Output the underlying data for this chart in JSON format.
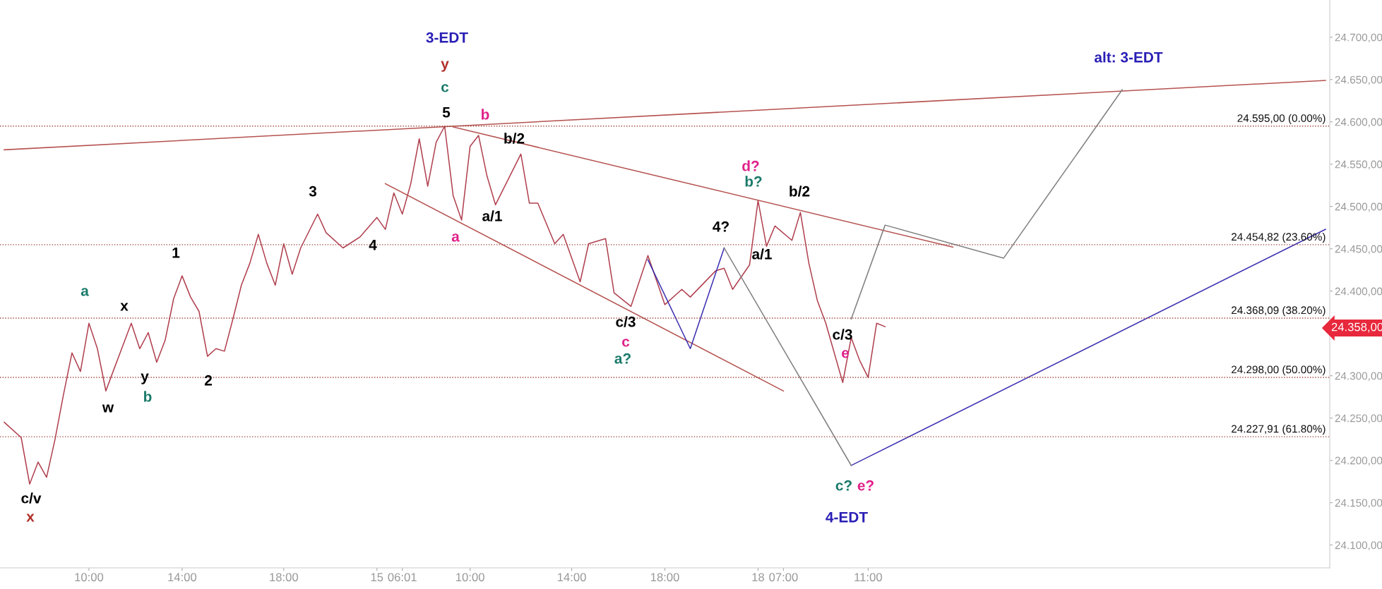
{
  "chart_data": {
    "type": "line",
    "ylim": [
      24073,
      24744
    ],
    "categories": [
      null,
      null,
      null,
      null,
      null,
      null,
      null,
      null,
      null,
      null,
      "10:00",
      null,
      null,
      null,
      null,
      null,
      null,
      null,
      null,
      null,
      null,
      "14:00",
      null,
      null,
      null,
      null,
      null,
      null,
      null,
      null,
      null,
      null,
      null,
      "18:00",
      null,
      null,
      null,
      null,
      null,
      null,
      null,
      null,
      null,
      null,
      "15",
      null,
      null,
      "06:01",
      null,
      null,
      null,
      null,
      null,
      null,
      null,
      "10:00",
      null,
      null,
      null,
      null,
      null,
      null,
      null,
      null,
      null,
      null,
      null,
      "14:00",
      null,
      null,
      null,
      null,
      null,
      null,
      null,
      null,
      null,
      null,
      "18:00",
      null,
      null,
      null,
      null,
      null,
      null,
      null,
      null,
      null,
      null,
      "18",
      null,
      null,
      "07:00",
      null,
      null,
      null,
      null,
      null,
      null,
      null,
      null,
      null,
      "11:00",
      null,
      null,
      null,
      null,
      null,
      null,
      null,
      null,
      null,
      null,
      null,
      null,
      null,
      null,
      null,
      null,
      null,
      null,
      null,
      null,
      null,
      null,
      null,
      null,
      null,
      null,
      null,
      null,
      null,
      null,
      null,
      null,
      null,
      null,
      null,
      null,
      null,
      null,
      null,
      null,
      null,
      null,
      null,
      null,
      null,
      null,
      null,
      null,
      null,
      null,
      null,
      null,
      null,
      null
    ],
    "yticks": [
      {
        "value": 24100,
        "label": "24.100,00"
      },
      {
        "value": 24150,
        "label": "24.150,00"
      },
      {
        "value": 24200,
        "label": "24.200,00"
      },
      {
        "value": 24250,
        "label": "24.250,00"
      },
      {
        "value": 24300,
        "label": "24.300,00"
      },
      {
        "value": 24350,
        "label": null
      },
      {
        "value": 24400,
        "label": "24.400,00"
      },
      {
        "value": 24450,
        "label": "24.450,00"
      },
      {
        "value": 24500,
        "label": "24.500,00"
      },
      {
        "value": 24550,
        "label": "24.550,00"
      },
      {
        "value": 24600,
        "label": "24.600,00"
      },
      {
        "value": 24650,
        "label": "24.650,00"
      },
      {
        "value": 24700,
        "label": "24.700,00"
      }
    ],
    "grid": false,
    "legend": false,
    "marker": "none",
    "line_style": "solid",
    "series": [
      {
        "color": "#b0404f",
        "values": [
          24245,
          null,
          24227,
          24172,
          24198,
          24180,
          24225,
          24278,
          24327,
          24305,
          24362,
          24332,
          24282,
          24309,
          null,
          24362,
          24332,
          24351,
          24316,
          24342,
          24391,
          24418,
          24393,
          24376,
          24323,
          24332,
          24329,
          24367,
          24407,
          24433,
          24467,
          24433,
          24407,
          24456,
          24420,
          24451,
          null,
          24491,
          24469,
          null,
          24451,
          null,
          24464,
          null,
          24487,
          24473,
          24516,
          24491,
          24527,
          24580,
          24524,
          24576,
          24595,
          24513,
          24484,
          24571,
          24584,
          24536,
          24502,
          null,
          null,
          24562,
          24504,
          24504,
          null,
          24456,
          24467,
          null,
          24411,
          24456,
          null,
          24462,
          24398,
          null,
          24382,
          null,
          24442,
          null,
          24384,
          null,
          24402,
          24393,
          null,
          null,
          24424,
          24427,
          24402,
          null,
          24431,
          24507,
          24453,
          24477,
          null,
          24460,
          24493,
          24433,
          24389,
          24362,
          24327,
          24292,
          24345,
          24318,
          24298,
          24362,
          24358,
          null,
          null,
          null,
          null,
          null,
          null,
          null,
          null,
          null,
          null,
          null,
          null,
          null,
          null,
          null,
          null,
          null,
          null,
          null,
          null,
          null,
          null,
          null,
          null,
          null,
          null,
          null,
          null,
          null,
          null,
          null,
          null,
          null,
          null,
          null,
          null,
          null,
          null,
          null,
          null,
          null,
          null,
          null,
          null,
          null,
          null,
          null,
          null,
          null,
          null,
          null,
          null
        ]
      },
      {
        "color": "#b5524f",
        "values": [
          24567,
          null,
          null,
          null,
          null,
          null,
          null,
          null,
          null,
          null,
          null,
          null,
          null,
          null,
          null,
          null,
          null,
          null,
          null,
          null,
          null,
          null,
          null,
          null,
          null,
          null,
          null,
          null,
          null,
          null,
          null,
          null,
          null,
          null,
          null,
          null,
          null,
          null,
          null,
          null,
          null,
          null,
          null,
          null,
          null,
          null,
          null,
          null,
          null,
          null,
          null,
          null,
          null,
          null,
          null,
          null,
          null,
          null,
          null,
          null,
          null,
          null,
          null,
          null,
          null,
          null,
          null,
          null,
          null,
          null,
          null,
          null,
          null,
          null,
          null,
          null,
          null,
          null,
          null,
          null,
          null,
          null,
          null,
          null,
          null,
          null,
          null,
          null,
          null,
          null,
          null,
          null,
          null,
          null,
          null,
          null,
          null,
          null,
          null,
          null,
          null,
          null,
          null,
          null,
          null,
          null,
          null,
          null,
          null,
          null,
          null,
          null,
          null,
          null,
          null,
          null,
          null,
          null,
          null,
          null,
          null,
          null,
          null,
          null,
          null,
          null,
          null,
          null,
          null,
          null,
          null,
          null,
          null,
          null,
          null,
          null,
          null,
          null,
          null,
          null,
          null,
          null,
          null,
          null,
          null,
          null,
          null,
          null,
          null,
          null,
          null,
          null,
          null,
          null,
          null,
          null,
          24649
        ]
      },
      {
        "color": "#b5524f",
        "values": [
          null,
          null,
          null,
          null,
          null,
          null,
          null,
          null,
          null,
          null,
          null,
          null,
          null,
          null,
          null,
          null,
          null,
          null,
          null,
          null,
          null,
          null,
          null,
          null,
          null,
          null,
          null,
          null,
          null,
          null,
          null,
          null,
          null,
          null,
          null,
          null,
          null,
          null,
          null,
          null,
          null,
          null,
          null,
          null,
          null,
          null,
          null,
          null,
          null,
          null,
          null,
          null,
          null,
          24594,
          null,
          null,
          null,
          null,
          null,
          null,
          null,
          null,
          null,
          null,
          null,
          null,
          null,
          null,
          null,
          null,
          null,
          null,
          null,
          null,
          null,
          null,
          null,
          null,
          null,
          null,
          null,
          null,
          null,
          null,
          null,
          null,
          null,
          null,
          null,
          null,
          null,
          null,
          null,
          null,
          null,
          null,
          null,
          null,
          null,
          null,
          null,
          null,
          null,
          null,
          null,
          null,
          null,
          null,
          null,
          null,
          null,
          null,
          24452,
          null,
          null,
          null,
          null,
          null,
          null,
          null,
          null,
          null,
          null,
          null,
          null,
          null,
          null,
          null,
          null,
          null,
          null,
          null,
          null,
          null,
          null,
          null,
          null,
          null,
          null,
          null,
          null,
          null,
          null,
          null,
          null,
          null,
          null,
          null,
          null,
          null,
          null,
          null,
          null,
          null,
          null,
          null,
          null
        ]
      },
      {
        "color": "#b5524f",
        "values": [
          null,
          null,
          null,
          null,
          null,
          null,
          null,
          null,
          null,
          null,
          null,
          null,
          null,
          null,
          null,
          null,
          null,
          null,
          null,
          null,
          null,
          null,
          null,
          null,
          null,
          null,
          null,
          null,
          null,
          null,
          null,
          null,
          null,
          null,
          null,
          null,
          null,
          null,
          null,
          null,
          null,
          null,
          null,
          null,
          null,
          24527,
          null,
          null,
          null,
          null,
          null,
          null,
          null,
          null,
          null,
          null,
          null,
          null,
          null,
          null,
          null,
          null,
          null,
          null,
          null,
          null,
          null,
          null,
          null,
          null,
          null,
          null,
          null,
          null,
          null,
          null,
          null,
          null,
          null,
          null,
          null,
          null,
          null,
          null,
          null,
          null,
          null,
          null,
          null,
          null,
          null,
          null,
          24282,
          null,
          null,
          null,
          null,
          null,
          null,
          null,
          null,
          null,
          null,
          null,
          null,
          null,
          null,
          null,
          null,
          null,
          null,
          null,
          null,
          null,
          null,
          null,
          null,
          null,
          null,
          null,
          null,
          null,
          null,
          null,
          null,
          null,
          null,
          null,
          null,
          null,
          null,
          null,
          null,
          null,
          null,
          null,
          null,
          null,
          null,
          null,
          null,
          null,
          null,
          null,
          null,
          null,
          null,
          null,
          null,
          null,
          null,
          null,
          null,
          null,
          null,
          null,
          null
        ]
      },
      {
        "color": "#3a2fb0",
        "values": [
          null,
          null,
          null,
          null,
          null,
          null,
          null,
          null,
          null,
          null,
          null,
          null,
          null,
          null,
          null,
          null,
          null,
          null,
          null,
          null,
          null,
          null,
          null,
          null,
          null,
          null,
          null,
          null,
          null,
          null,
          null,
          null,
          null,
          null,
          null,
          null,
          null,
          null,
          null,
          null,
          null,
          null,
          null,
          null,
          null,
          null,
          null,
          null,
          null,
          null,
          null,
          null,
          null,
          null,
          null,
          null,
          null,
          null,
          null,
          null,
          null,
          null,
          null,
          null,
          null,
          null,
          null,
          null,
          null,
          null,
          null,
          null,
          null,
          null,
          null,
          null,
          24437,
          null,
          null,
          null,
          null,
          24332,
          null,
          null,
          null,
          24451,
          null,
          null,
          null,
          null,
          null,
          null,
          null,
          null,
          null,
          null,
          null,
          null,
          null,
          null,
          null,
          null,
          null,
          null,
          null,
          null,
          null,
          null,
          null,
          null,
          null,
          null,
          null,
          null,
          null,
          null,
          null,
          null,
          null,
          null,
          null,
          null,
          null,
          null,
          null,
          null,
          null,
          null,
          null,
          null,
          null,
          null,
          null,
          null,
          null,
          null,
          null,
          null,
          null,
          null,
          null,
          null,
          null,
          null,
          null,
          null,
          null,
          null,
          null,
          null,
          null,
          null,
          null,
          null,
          null,
          null,
          null
        ]
      },
      {
        "color": "#3a2fb0",
        "values": [
          null,
          null,
          null,
          null,
          null,
          null,
          null,
          null,
          null,
          null,
          null,
          null,
          null,
          null,
          null,
          null,
          null,
          null,
          null,
          null,
          null,
          null,
          null,
          null,
          null,
          null,
          null,
          null,
          null,
          null,
          null,
          null,
          null,
          null,
          null,
          null,
          null,
          null,
          null,
          null,
          null,
          null,
          null,
          null,
          null,
          null,
          null,
          null,
          null,
          null,
          null,
          null,
          null,
          null,
          null,
          null,
          null,
          null,
          null,
          null,
          null,
          null,
          null,
          null,
          null,
          null,
          null,
          null,
          null,
          null,
          null,
          null,
          null,
          null,
          null,
          null,
          null,
          null,
          null,
          null,
          null,
          null,
          null,
          null,
          null,
          null,
          null,
          null,
          null,
          null,
          null,
          null,
          null,
          null,
          null,
          null,
          null,
          null,
          null,
          null,
          24194,
          null,
          null,
          null,
          null,
          null,
          null,
          null,
          null,
          null,
          null,
          null,
          null,
          null,
          null,
          null,
          null,
          null,
          null,
          null,
          null,
          null,
          null,
          null,
          null,
          null,
          null,
          null,
          null,
          null,
          null,
          null,
          null,
          null,
          null,
          null,
          null,
          null,
          null,
          null,
          null,
          null,
          null,
          null,
          null,
          null,
          null,
          null,
          null,
          null,
          null,
          null,
          null,
          null,
          null,
          null,
          24473
        ]
      },
      {
        "color": "#808080",
        "values": [
          null,
          null,
          null,
          null,
          null,
          null,
          null,
          null,
          null,
          null,
          null,
          null,
          null,
          null,
          null,
          null,
          null,
          null,
          null,
          null,
          null,
          null,
          null,
          null,
          null,
          null,
          null,
          null,
          null,
          null,
          null,
          null,
          null,
          null,
          null,
          null,
          null,
          null,
          null,
          null,
          null,
          null,
          null,
          null,
          null,
          null,
          null,
          null,
          null,
          null,
          null,
          null,
          null,
          null,
          null,
          null,
          null,
          null,
          null,
          null,
          null,
          null,
          null,
          null,
          null,
          null,
          null,
          null,
          null,
          null,
          null,
          null,
          null,
          null,
          null,
          null,
          null,
          null,
          null,
          null,
          null,
          null,
          null,
          null,
          null,
          24451,
          null,
          null,
          null,
          null,
          null,
          null,
          null,
          null,
          null,
          null,
          null,
          null,
          null,
          null,
          24194,
          null,
          null,
          null,
          null,
          null,
          null,
          null,
          null,
          null,
          null,
          null,
          null,
          null,
          null,
          null,
          null,
          null,
          null,
          null,
          null,
          null,
          null,
          null,
          null,
          null,
          null,
          null,
          null,
          null,
          null,
          null,
          null,
          null,
          null,
          null,
          null,
          null,
          null,
          null,
          null,
          null,
          null,
          null,
          null,
          null,
          null,
          null,
          null,
          null,
          null,
          null,
          null,
          null,
          null,
          null,
          null
        ]
      },
      {
        "color": "#808080",
        "values": [
          null,
          null,
          null,
          null,
          null,
          null,
          null,
          null,
          null,
          null,
          null,
          null,
          null,
          null,
          null,
          null,
          null,
          null,
          null,
          null,
          null,
          null,
          null,
          null,
          null,
          null,
          null,
          null,
          null,
          null,
          null,
          null,
          null,
          null,
          null,
          null,
          null,
          null,
          null,
          null,
          null,
          null,
          null,
          null,
          null,
          null,
          null,
          null,
          null,
          null,
          null,
          null,
          null,
          null,
          null,
          null,
          null,
          null,
          null,
          null,
          null,
          null,
          null,
          null,
          null,
          null,
          null,
          null,
          null,
          null,
          null,
          null,
          null,
          null,
          null,
          null,
          null,
          null,
          null,
          null,
          null,
          null,
          null,
          null,
          null,
          null,
          null,
          null,
          null,
          null,
          null,
          null,
          null,
          null,
          null,
          null,
          null,
          null,
          null,
          null,
          24367,
          null,
          null,
          null,
          24478,
          null,
          null,
          null,
          null,
          null,
          null,
          null,
          null,
          null,
          null,
          null,
          null,
          null,
          24439,
          null,
          null,
          null,
          null,
          null,
          null,
          null,
          null,
          null,
          null,
          null,
          null,
          null,
          24638,
          null,
          null,
          null,
          null,
          null,
          null,
          null,
          null,
          null,
          null,
          null,
          null,
          null,
          null,
          null,
          null,
          null,
          null,
          null,
          null,
          null,
          null,
          null,
          null
        ]
      }
    ],
    "ref_lines": [
      {
        "axis": "y",
        "value": 24595,
        "label": "24.595,00 (0.00%)",
        "color": "#a0443c",
        "line_style": "dotted"
      },
      {
        "axis": "y",
        "value": 24454.82,
        "label": "24.454,82 (23.60%)",
        "color": "#a0443c",
        "line_style": "dotted"
      },
      {
        "axis": "y",
        "value": 24368.09,
        "label": "24.368,09 (38.20%)",
        "color": "#a0443c",
        "line_style": "dotted"
      },
      {
        "axis": "y",
        "value": 24298,
        "label": "24.298,00 (50.00%)",
        "color": "#a0443c",
        "line_style": "dotted"
      },
      {
        "axis": "y",
        "value": 24227.91,
        "label": "24.227,91 (61.80%)",
        "color": "#a0443c",
        "line_style": "dotted"
      }
    ],
    "annotations": [
      "3-EDT",
      "y",
      "c",
      "5",
      "b",
      "3",
      "4",
      "a",
      "a/1",
      "b/2",
      "1",
      "a",
      "x",
      "y",
      "b",
      "w",
      "2",
      "c/v",
      "x",
      "c/3",
      "c",
      "a?",
      "4?",
      "d?",
      "b?",
      "b/2",
      "a/1",
      "c/3",
      "e",
      "c?",
      "e?",
      "4-EDT",
      "alt: 3-EDT",
      "24.358,00"
    ]
  }
}
